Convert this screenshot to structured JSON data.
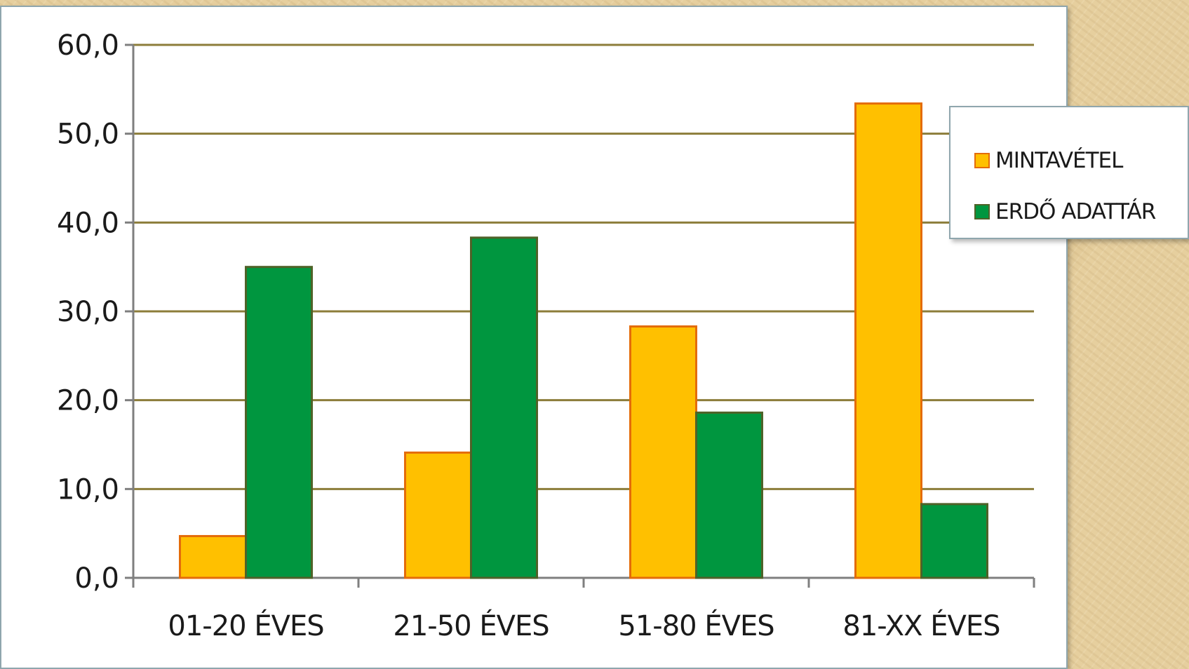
{
  "chart_data": {
    "type": "bar",
    "title": "",
    "xlabel": "",
    "ylabel": "",
    "categories": [
      "01-20 ÉVES",
      "21-50 ÉVES",
      "51-80 ÉVES",
      "81-XX ÉVES"
    ],
    "series": [
      {
        "name": "MINTAVÉTEL",
        "values": [
          4.7,
          14.1,
          28.3,
          53.4
        ],
        "color": "#ffc000",
        "stroke": "#e46c0a"
      },
      {
        "name": "ERDŐ ADATTÁR",
        "values": [
          35.0,
          38.3,
          18.6,
          8.3
        ],
        "color": "#00963f",
        "stroke": "#4f6228"
      }
    ],
    "ylim": [
      0,
      60
    ],
    "yticks": [
      0,
      10,
      20,
      30,
      40,
      50,
      60
    ],
    "ytick_labels": [
      "0,0",
      "10,0",
      "20,0",
      "30,0",
      "40,0",
      "50,0",
      "60,0"
    ],
    "grid": true,
    "gridline_color": "#8c7d3a",
    "legend_position": "right"
  }
}
